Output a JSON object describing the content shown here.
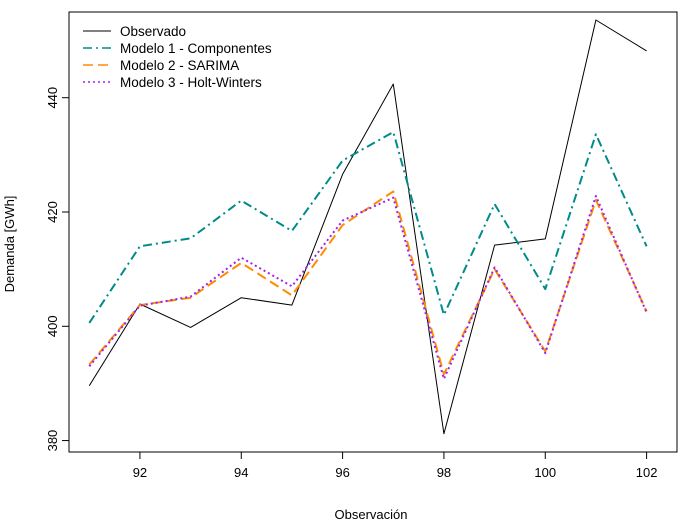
{
  "chart_data": {
    "type": "line",
    "xlabel": "Observación",
    "ylabel": "Demanda [GWh]",
    "xlim": [
      90.6,
      102.6
    ],
    "ylim": [
      378,
      455
    ],
    "x_ticks": [
      92,
      94,
      96,
      98,
      100,
      102
    ],
    "y_ticks": [
      380,
      400,
      420,
      440
    ],
    "grid": false,
    "legend_position": "top-left",
    "x": [
      91,
      92,
      93,
      94,
      95,
      96,
      97,
      98,
      99,
      100,
      101,
      102
    ],
    "series": [
      {
        "name": "Observado",
        "color": "#000000",
        "dash": "",
        "width": 1,
        "values": [
          389.6,
          403.9,
          399.8,
          405.0,
          403.7,
          426.6,
          442.4,
          381.2,
          414.2,
          415.3,
          453.6,
          448.2
        ]
      },
      {
        "name": "Modelo 1 - Componentes",
        "color": "#008B8B",
        "dash": "9,4,2,4",
        "width": 2,
        "values": [
          400.6,
          414.0,
          415.4,
          422.0,
          416.7,
          429.0,
          434.0,
          402.0,
          421.4,
          406.5,
          433.6,
          414.0
        ]
      },
      {
        "name": "Modelo 2 - SARIMA",
        "color": "#FF8C00",
        "dash": "10,5",
        "width": 2,
        "values": [
          393.3,
          403.7,
          405.0,
          411.1,
          405.4,
          417.7,
          423.6,
          391.6,
          410.0,
          395.6,
          422.1,
          402.6
        ]
      },
      {
        "name": "Modelo 3 - Holt-Winters",
        "color": "#A020F0",
        "dash": "2,3",
        "width": 2,
        "values": [
          393.0,
          403.6,
          405.2,
          412.0,
          407.0,
          418.5,
          422.5,
          390.8,
          410.3,
          395.3,
          422.8,
          402.4
        ]
      }
    ]
  }
}
